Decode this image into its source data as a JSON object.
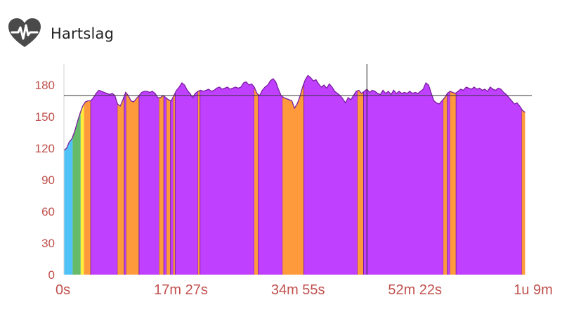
{
  "header": {
    "title": "Hartslag",
    "icon": "heart-rate-icon"
  },
  "chart_data": {
    "type": "area",
    "title": "Hartslag",
    "xlabel": "",
    "ylabel": "",
    "ylim": [
      0,
      200
    ],
    "xlim_minutes": [
      0,
      69.8
    ],
    "y_ticks": [
      "0",
      "30",
      "60",
      "90",
      "120",
      "150",
      "180"
    ],
    "x_ticks": [
      {
        "label": "0s",
        "minute": 0
      },
      {
        "label": "17m 27s",
        "minute": 17.45
      },
      {
        "label": "34m 55s",
        "minute": 34.92
      },
      {
        "label": "52m 22s",
        "minute": 52.37
      },
      {
        "label": "1u 9m",
        "minute": 69.8
      }
    ],
    "threshold_bpm": 170,
    "cursor_minute": 45.2,
    "zone_colors": {
      "zone1": "#4fc3f7",
      "zone2": "#66bb6a",
      "zone3": "#ffeb3b",
      "zone4": "#ff9a3c",
      "zone5": "#c040ff"
    },
    "heart_rate": [
      [
        0.0,
        118
      ],
      [
        0.4,
        120
      ],
      [
        0.8,
        126
      ],
      [
        1.2,
        129
      ],
      [
        1.6,
        136
      ],
      [
        2.0,
        145
      ],
      [
        2.4,
        153
      ],
      [
        2.8,
        160
      ],
      [
        3.2,
        164
      ],
      [
        3.6,
        165
      ],
      [
        4.0,
        165
      ],
      [
        4.4,
        168
      ],
      [
        4.8,
        172
      ],
      [
        5.2,
        175
      ],
      [
        5.6,
        174
      ],
      [
        6.0,
        173
      ],
      [
        6.4,
        172
      ],
      [
        6.8,
        171
      ],
      [
        7.2,
        172
      ],
      [
        7.6,
        170
      ],
      [
        8.0,
        162
      ],
      [
        8.4,
        160
      ],
      [
        8.8,
        166
      ],
      [
        9.2,
        173
      ],
      [
        9.6,
        170
      ],
      [
        10.0,
        165
      ],
      [
        10.4,
        164
      ],
      [
        10.8,
        167
      ],
      [
        11.2,
        170
      ],
      [
        11.6,
        173
      ],
      [
        12.0,
        174
      ],
      [
        12.4,
        174
      ],
      [
        12.8,
        173
      ],
      [
        13.2,
        174
      ],
      [
        13.6,
        172
      ],
      [
        14.0,
        168
      ],
      [
        14.4,
        168
      ],
      [
        14.8,
        170
      ],
      [
        15.2,
        168
      ],
      [
        15.6,
        166
      ],
      [
        16.0,
        165
      ],
      [
        16.4,
        170
      ],
      [
        16.8,
        175
      ],
      [
        17.2,
        178
      ],
      [
        17.6,
        182
      ],
      [
        18.0,
        180
      ],
      [
        18.4,
        175
      ],
      [
        18.8,
        172
      ],
      [
        19.2,
        168
      ],
      [
        19.6,
        172
      ],
      [
        20.0,
        174
      ],
      [
        20.4,
        175
      ],
      [
        20.8,
        174
      ],
      [
        21.2,
        175
      ],
      [
        21.6,
        176
      ],
      [
        22.0,
        174
      ],
      [
        22.4,
        175
      ],
      [
        22.8,
        177
      ],
      [
        23.2,
        178
      ],
      [
        23.6,
        176
      ],
      [
        24.0,
        177
      ],
      [
        24.4,
        178
      ],
      [
        24.8,
        176
      ],
      [
        25.2,
        177
      ],
      [
        25.6,
        178
      ],
      [
        26.0,
        177
      ],
      [
        26.4,
        178
      ],
      [
        26.8,
        182
      ],
      [
        27.2,
        183
      ],
      [
        27.6,
        180
      ],
      [
        28.0,
        181
      ],
      [
        28.4,
        178
      ],
      [
        28.8,
        172
      ],
      [
        29.2,
        170
      ],
      [
        29.6,
        175
      ],
      [
        30.0,
        178
      ],
      [
        30.4,
        180
      ],
      [
        30.8,
        184
      ],
      [
        31.2,
        186
      ],
      [
        31.6,
        183
      ],
      [
        32.0,
        176
      ],
      [
        32.4,
        170
      ],
      [
        32.8,
        168
      ],
      [
        33.2,
        167
      ],
      [
        33.6,
        166
      ],
      [
        34.0,
        165
      ],
      [
        34.4,
        158
      ],
      [
        34.8,
        162
      ],
      [
        35.2,
        169
      ],
      [
        35.6,
        178
      ],
      [
        36.0,
        185
      ],
      [
        36.4,
        189
      ],
      [
        36.8,
        187
      ],
      [
        37.2,
        184
      ],
      [
        37.6,
        185
      ],
      [
        38.0,
        181
      ],
      [
        38.4,
        178
      ],
      [
        38.8,
        180
      ],
      [
        39.2,
        177
      ],
      [
        39.6,
        181
      ],
      [
        40.0,
        178
      ],
      [
        40.4,
        174
      ],
      [
        40.8,
        172
      ],
      [
        41.2,
        170
      ],
      [
        41.6,
        167
      ],
      [
        42.0,
        163
      ],
      [
        42.4,
        168
      ],
      [
        42.8,
        166
      ],
      [
        43.2,
        170
      ],
      [
        43.6,
        174
      ],
      [
        44.0,
        175
      ],
      [
        44.4,
        172
      ],
      [
        44.8,
        174
      ],
      [
        45.2,
        176
      ],
      [
        45.6,
        173
      ],
      [
        46.0,
        175
      ],
      [
        46.4,
        174
      ],
      [
        46.8,
        172
      ],
      [
        47.2,
        171
      ],
      [
        47.6,
        175
      ],
      [
        48.0,
        172
      ],
      [
        48.4,
        174
      ],
      [
        48.8,
        171
      ],
      [
        49.2,
        175
      ],
      [
        49.6,
        172
      ],
      [
        50.0,
        174
      ],
      [
        50.4,
        172
      ],
      [
        50.8,
        173
      ],
      [
        51.2,
        172
      ],
      [
        51.6,
        174
      ],
      [
        52.0,
        172
      ],
      [
        52.4,
        173
      ],
      [
        52.8,
        172
      ],
      [
        53.2,
        174
      ],
      [
        53.6,
        176
      ],
      [
        54.0,
        182
      ],
      [
        54.4,
        180
      ],
      [
        54.8,
        172
      ],
      [
        55.2,
        165
      ],
      [
        55.6,
        163
      ],
      [
        56.0,
        162
      ],
      [
        56.4,
        165
      ],
      [
        56.8,
        168
      ],
      [
        57.2,
        172
      ],
      [
        57.6,
        174
      ],
      [
        58.0,
        173
      ],
      [
        58.4,
        172
      ],
      [
        58.8,
        174
      ],
      [
        59.2,
        176
      ],
      [
        59.6,
        175
      ],
      [
        60.0,
        178
      ],
      [
        60.4,
        177
      ],
      [
        60.8,
        176
      ],
      [
        61.2,
        178
      ],
      [
        61.6,
        176
      ],
      [
        62.0,
        177
      ],
      [
        62.4,
        175
      ],
      [
        62.8,
        176
      ],
      [
        63.2,
        174
      ],
      [
        63.6,
        178
      ],
      [
        64.0,
        176
      ],
      [
        64.4,
        175
      ],
      [
        64.8,
        177
      ],
      [
        65.2,
        176
      ],
      [
        65.6,
        173
      ],
      [
        66.0,
        171
      ],
      [
        66.4,
        168
      ],
      [
        66.8,
        165
      ],
      [
        67.2,
        162
      ],
      [
        67.6,
        163
      ],
      [
        68.0,
        160
      ],
      [
        68.4,
        156
      ],
      [
        68.8,
        154
      ]
    ],
    "zone_segments": [
      {
        "zone": "zone1",
        "start": 0.0,
        "end": 1.3
      },
      {
        "zone": "zone2",
        "start": 1.3,
        "end": 2.5
      },
      {
        "zone": "zone3",
        "start": 2.5,
        "end": 3.0
      },
      {
        "zone": "zone4",
        "start": 3.0,
        "end": 4.0
      },
      {
        "zone": "zone5",
        "start": 4.0,
        "end": 8.0
      },
      {
        "zone": "zone4",
        "start": 8.0,
        "end": 9.0
      },
      {
        "zone": "zone5",
        "start": 9.0,
        "end": 9.3
      },
      {
        "zone": "zone4",
        "start": 9.3,
        "end": 11.2
      },
      {
        "zone": "zone5",
        "start": 11.2,
        "end": 14.2
      },
      {
        "zone": "zone4",
        "start": 14.2,
        "end": 14.9
      },
      {
        "zone": "zone5",
        "start": 14.9,
        "end": 15.3
      },
      {
        "zone": "zone4",
        "start": 15.3,
        "end": 15.9
      },
      {
        "zone": "zone5",
        "start": 15.9,
        "end": 16.3
      },
      {
        "zone": "zone4",
        "start": 16.3,
        "end": 16.6
      },
      {
        "zone": "zone5",
        "start": 16.6,
        "end": 20.0
      },
      {
        "zone": "zone4",
        "start": 20.0,
        "end": 20.3
      },
      {
        "zone": "zone5",
        "start": 20.3,
        "end": 28.4
      },
      {
        "zone": "zone4",
        "start": 28.4,
        "end": 29.0
      },
      {
        "zone": "zone5",
        "start": 29.0,
        "end": 32.6
      },
      {
        "zone": "zone4",
        "start": 32.6,
        "end": 35.8
      },
      {
        "zone": "zone5",
        "start": 35.8,
        "end": 43.8
      },
      {
        "zone": "zone4",
        "start": 43.8,
        "end": 44.7
      },
      {
        "zone": "zone5",
        "start": 44.7,
        "end": 56.6
      },
      {
        "zone": "zone4",
        "start": 56.6,
        "end": 57.2
      },
      {
        "zone": "zone5",
        "start": 57.2,
        "end": 57.6
      },
      {
        "zone": "zone4",
        "start": 57.6,
        "end": 58.5
      },
      {
        "zone": "zone5",
        "start": 58.5,
        "end": 68.3
      },
      {
        "zone": "zone4",
        "start": 68.3,
        "end": 68.8
      }
    ]
  }
}
